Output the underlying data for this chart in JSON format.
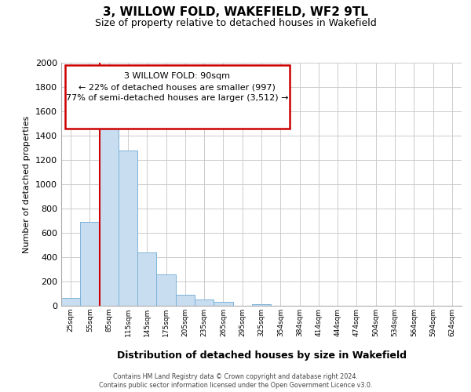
{
  "title": "3, WILLOW FOLD, WAKEFIELD, WF2 9TL",
  "subtitle": "Size of property relative to detached houses in Wakefield",
  "xlabel": "Distribution of detached houses by size in Wakefield",
  "ylabel": "Number of detached properties",
  "bar_face_color": "#c9ddf0",
  "bar_edge_color": "#7ab3d9",
  "bin_labels": [
    "25sqm",
    "55sqm",
    "85sqm",
    "115sqm",
    "145sqm",
    "175sqm",
    "205sqm",
    "235sqm",
    "265sqm",
    "295sqm",
    "325sqm",
    "354sqm",
    "384sqm",
    "414sqm",
    "444sqm",
    "474sqm",
    "504sqm",
    "534sqm",
    "564sqm",
    "594sqm",
    "624sqm"
  ],
  "bar_heights": [
    65,
    690,
    1640,
    1280,
    440,
    255,
    90,
    50,
    30,
    0,
    15,
    0,
    0,
    0,
    0,
    0,
    0,
    0,
    0,
    0,
    0
  ],
  "ylim": [
    0,
    2000
  ],
  "yticks": [
    0,
    200,
    400,
    600,
    800,
    1000,
    1200,
    1400,
    1600,
    1800,
    2000
  ],
  "vline_bar_index": 2,
  "vline_color": "#cc0000",
  "box_text_line1": "3 WILLOW FOLD: 90sqm",
  "box_text_line2": "← 22% of detached houses are smaller (997)",
  "box_text_line3": "77% of semi-detached houses are larger (3,512) →",
  "box_edge_color": "#cc0000",
  "background_color": "#ffffff",
  "grid_color": "#cccccc",
  "footnote1": "Contains HM Land Registry data © Crown copyright and database right 2024.",
  "footnote2": "Contains public sector information licensed under the Open Government Licence v3.0."
}
